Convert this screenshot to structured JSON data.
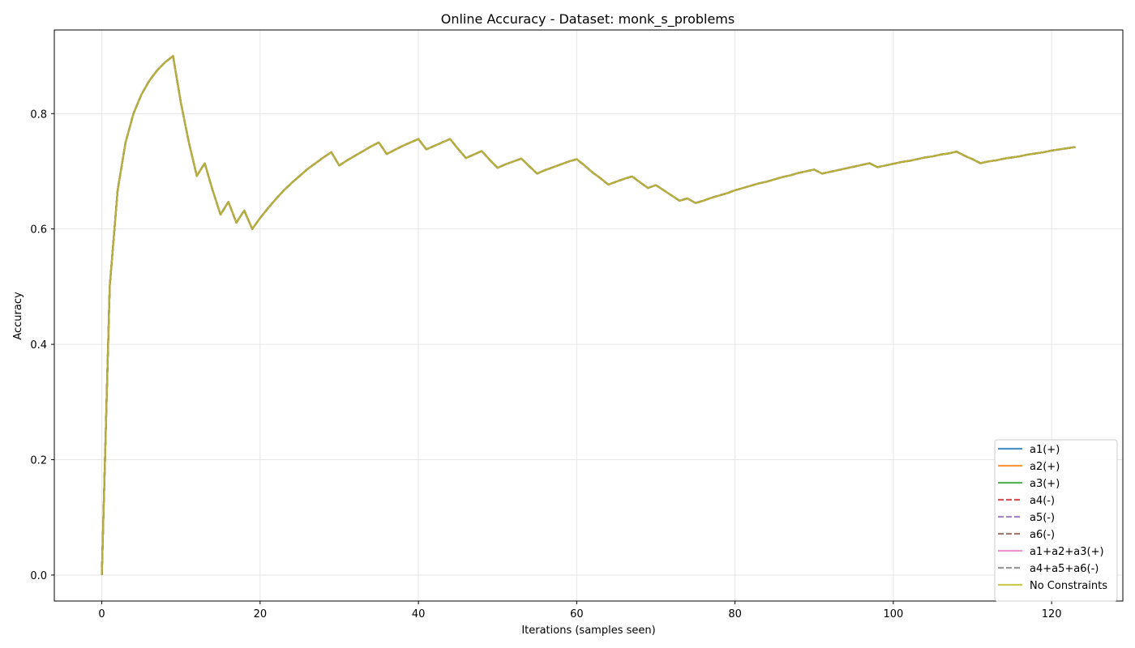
{
  "chart_data": {
    "type": "line",
    "title": "Online Accuracy - Dataset: monk_s_problems",
    "xlabel": "Iterations (samples seen)",
    "ylabel": "Accuracy",
    "xlim": [
      -6,
      129
    ],
    "ylim": [
      -0.045,
      0.945
    ],
    "xticks": [
      0,
      20,
      40,
      60,
      80,
      100,
      120
    ],
    "yticks": [
      0.0,
      0.2,
      0.4,
      0.6,
      0.8
    ],
    "ytick_labels": [
      "0.0",
      "0.2",
      "0.4",
      "0.6",
      "0.8"
    ],
    "grid": true,
    "legend_position": "lower-right",
    "x": [
      0,
      1,
      2,
      3,
      4,
      5,
      6,
      7,
      8,
      9,
      10,
      11,
      12,
      13,
      14,
      15,
      16,
      17,
      18,
      19,
      20,
      21,
      22,
      23,
      24,
      25,
      26,
      27,
      28,
      29,
      30,
      31,
      32,
      33,
      34,
      35,
      36,
      37,
      38,
      39,
      40,
      41,
      42,
      43,
      44,
      45,
      46,
      47,
      48,
      49,
      50,
      51,
      52,
      53,
      54,
      55,
      56,
      57,
      58,
      59,
      60,
      61,
      62,
      63,
      64,
      65,
      66,
      67,
      68,
      69,
      70,
      71,
      72,
      73,
      74,
      75,
      76,
      77,
      78,
      79,
      80,
      81,
      82,
      83,
      84,
      85,
      86,
      87,
      88,
      89,
      90,
      91,
      92,
      93,
      94,
      95,
      96,
      97,
      98,
      99,
      100,
      101,
      102,
      103,
      104,
      105,
      106,
      107,
      108,
      109,
      110,
      111,
      112,
      113,
      114,
      115,
      116,
      117,
      118,
      119,
      120,
      121,
      122,
      123
    ],
    "y": [
      0.0,
      0.5,
      0.667,
      0.75,
      0.8,
      0.833,
      0.857,
      0.875,
      0.889,
      0.9,
      0.818,
      0.75,
      0.692,
      0.714,
      0.667,
      0.625,
      0.647,
      0.611,
      0.632,
      0.6,
      0.619,
      0.636,
      0.652,
      0.667,
      0.68,
      0.692,
      0.704,
      0.714,
      0.724,
      0.733,
      0.71,
      0.719,
      0.727,
      0.735,
      0.743,
      0.75,
      0.73,
      0.737,
      0.744,
      0.75,
      0.756,
      0.738,
      0.744,
      0.75,
      0.756,
      0.739,
      0.723,
      0.729,
      0.735,
      0.72,
      0.706,
      0.712,
      0.717,
      0.722,
      0.709,
      0.696,
      0.702,
      0.707,
      0.712,
      0.717,
      0.721,
      0.71,
      0.698,
      0.688,
      0.677,
      0.682,
      0.687,
      0.691,
      0.681,
      0.671,
      0.676,
      0.667,
      0.658,
      0.649,
      0.653,
      0.645,
      0.649,
      0.654,
      0.658,
      0.662,
      0.667,
      0.671,
      0.675,
      0.679,
      0.682,
      0.686,
      0.69,
      0.693,
      0.697,
      0.7,
      0.703,
      0.696,
      0.699,
      0.702,
      0.705,
      0.708,
      0.711,
      0.714,
      0.707,
      0.71,
      0.713,
      0.716,
      0.718,
      0.721,
      0.724,
      0.726,
      0.729,
      0.731,
      0.734,
      0.727,
      0.721,
      0.714,
      0.717,
      0.719,
      0.722,
      0.724,
      0.726,
      0.729,
      0.731,
      0.733,
      0.736,
      0.738,
      0.74,
      0.742
    ],
    "series": [
      {
        "name": "a1(+)",
        "color": "#1f77b4",
        "dash": "solid"
      },
      {
        "name": "a2(+)",
        "color": "#ff7f0e",
        "dash": "solid"
      },
      {
        "name": "a3(+)",
        "color": "#2ca02c",
        "dash": "solid"
      },
      {
        "name": "a4(-)",
        "color": "#d62728",
        "dash": "dashed"
      },
      {
        "name": "a5(-)",
        "color": "#9467bd",
        "dash": "dashed"
      },
      {
        "name": "a6(-)",
        "color": "#8c564b",
        "dash": "dashed"
      },
      {
        "name": "a1+a2+a3(+)",
        "color": "#e377c2",
        "dash": "solid"
      },
      {
        "name": "a4+a5+a6(-)",
        "color": "#7f7f7f",
        "dash": "dashed"
      },
      {
        "name": "No Constraints",
        "color": "#bcbd22",
        "dash": "solid"
      }
    ]
  }
}
